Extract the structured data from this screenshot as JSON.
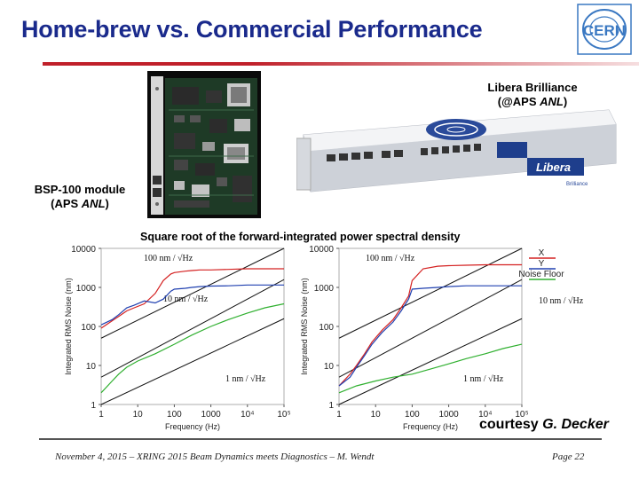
{
  "slide": {
    "title": "Home-brew vs. Commercial Performance",
    "logo_text": "CERN",
    "libera": {
      "line1": "Libera Brilliance",
      "line2_prefix": "(@APS ",
      "line2_italic": "ANL",
      "line2_suffix": ")",
      "brand": "Libera",
      "model": "Brilliance"
    },
    "bsp": {
      "line1": "BSP-100 module",
      "line2_prefix": "(APS ",
      "line2_italic": "ANL",
      "line2_suffix": ")"
    },
    "caption": "Square root of the forward-integrated power spectral density",
    "courtesy": {
      "prefix": "courtesy ",
      "name": "G. Decker"
    },
    "footer": {
      "text": "November 4, 2015 – XRING 2015 Beam Dynamics meets Diagnostics – M. Wendt",
      "page_label": "Page 22"
    }
  },
  "chart_data": [
    {
      "type": "line",
      "title": "",
      "xlabel": "Frequency (Hz)",
      "ylabel": "Integrated RMS Noise (nm)",
      "xscale": "log",
      "yscale": "log",
      "xlim": [
        1,
        100000
      ],
      "ylim": [
        1,
        10000
      ],
      "xticks": [
        "1",
        "10",
        "100",
        "1000",
        "10⁴",
        "10⁵"
      ],
      "yticks": [
        "10000",
        "1000",
        "100",
        "10",
        "1"
      ],
      "annotations": [
        "100 nm / √Hz",
        "10 nm / √Hz",
        "1 nm / √Hz"
      ],
      "series": [
        {
          "color": "#d42020",
          "x": [
            1,
            2,
            3,
            5,
            8,
            15,
            30,
            50,
            80,
            100,
            200,
            300,
            500,
            1000,
            3000,
            10000,
            30000,
            100000
          ],
          "y": [
            90,
            140,
            180,
            250,
            300,
            380,
            700,
            1500,
            2200,
            2400,
            2600,
            2700,
            2800,
            2800,
            2900,
            3000,
            3000,
            3000
          ]
        },
        {
          "color": "#2040b0",
          "x": [
            1,
            2,
            3,
            5,
            8,
            15,
            30,
            50,
            80,
            100,
            200,
            300,
            500,
            1000,
            3000,
            10000,
            30000,
            100000
          ],
          "y": [
            110,
            150,
            200,
            300,
            350,
            450,
            400,
            500,
            800,
            900,
            950,
            1000,
            1050,
            1080,
            1100,
            1150,
            1150,
            1150
          ]
        },
        {
          "color": "#30b030",
          "x": [
            1,
            2,
            3,
            5,
            10,
            30,
            100,
            300,
            1000,
            3000,
            10000,
            30000,
            100000
          ],
          "y": [
            2,
            4,
            6,
            9,
            13,
            20,
            35,
            60,
            100,
            150,
            220,
            300,
            380
          ]
        }
      ]
    },
    {
      "type": "line",
      "title": "",
      "xlabel": "Frequency (Hz)",
      "ylabel": "Integrated RMS Noise (nm)",
      "xscale": "log",
      "yscale": "log",
      "xlim": [
        1,
        100000
      ],
      "ylim": [
        1,
        10000
      ],
      "xticks": [
        "1",
        "10",
        "100",
        "1000",
        "10⁴",
        "10⁵"
      ],
      "yticks": [
        "10000",
        "1000",
        "100",
        "10",
        "1"
      ],
      "annotations": [
        "100 nm / √Hz",
        "10 nm / √Hz",
        "1 nm / √Hz"
      ],
      "legend": [
        "X",
        "Y",
        "Noise Floor"
      ],
      "legend_placement": "top-right",
      "series": [
        {
          "name": "X",
          "color": "#d42020",
          "x": [
            1,
            2,
            3,
            5,
            8,
            15,
            30,
            50,
            80,
            100,
            200,
            500,
            1000,
            3000,
            10000,
            30000,
            100000
          ],
          "y": [
            3,
            6,
            10,
            20,
            40,
            80,
            150,
            300,
            600,
            1500,
            3000,
            3500,
            3600,
            3700,
            3800,
            3800,
            3800
          ]
        },
        {
          "name": "Y",
          "color": "#2040b0",
          "x": [
            1,
            2,
            3,
            5,
            8,
            15,
            30,
            50,
            80,
            100,
            200,
            500,
            1000,
            3000,
            10000,
            30000,
            100000
          ],
          "y": [
            3,
            5,
            9,
            18,
            35,
            70,
            130,
            250,
            500,
            900,
            950,
            1000,
            1050,
            1100,
            1100,
            1100,
            1100
          ]
        },
        {
          "name": "Noise Floor",
          "color": "#30b030",
          "x": [
            1,
            3,
            10,
            30,
            100,
            300,
            1000,
            3000,
            10000,
            30000,
            100000
          ],
          "y": [
            2,
            3,
            4,
            5,
            6,
            8,
            11,
            15,
            20,
            27,
            35
          ]
        }
      ]
    }
  ]
}
